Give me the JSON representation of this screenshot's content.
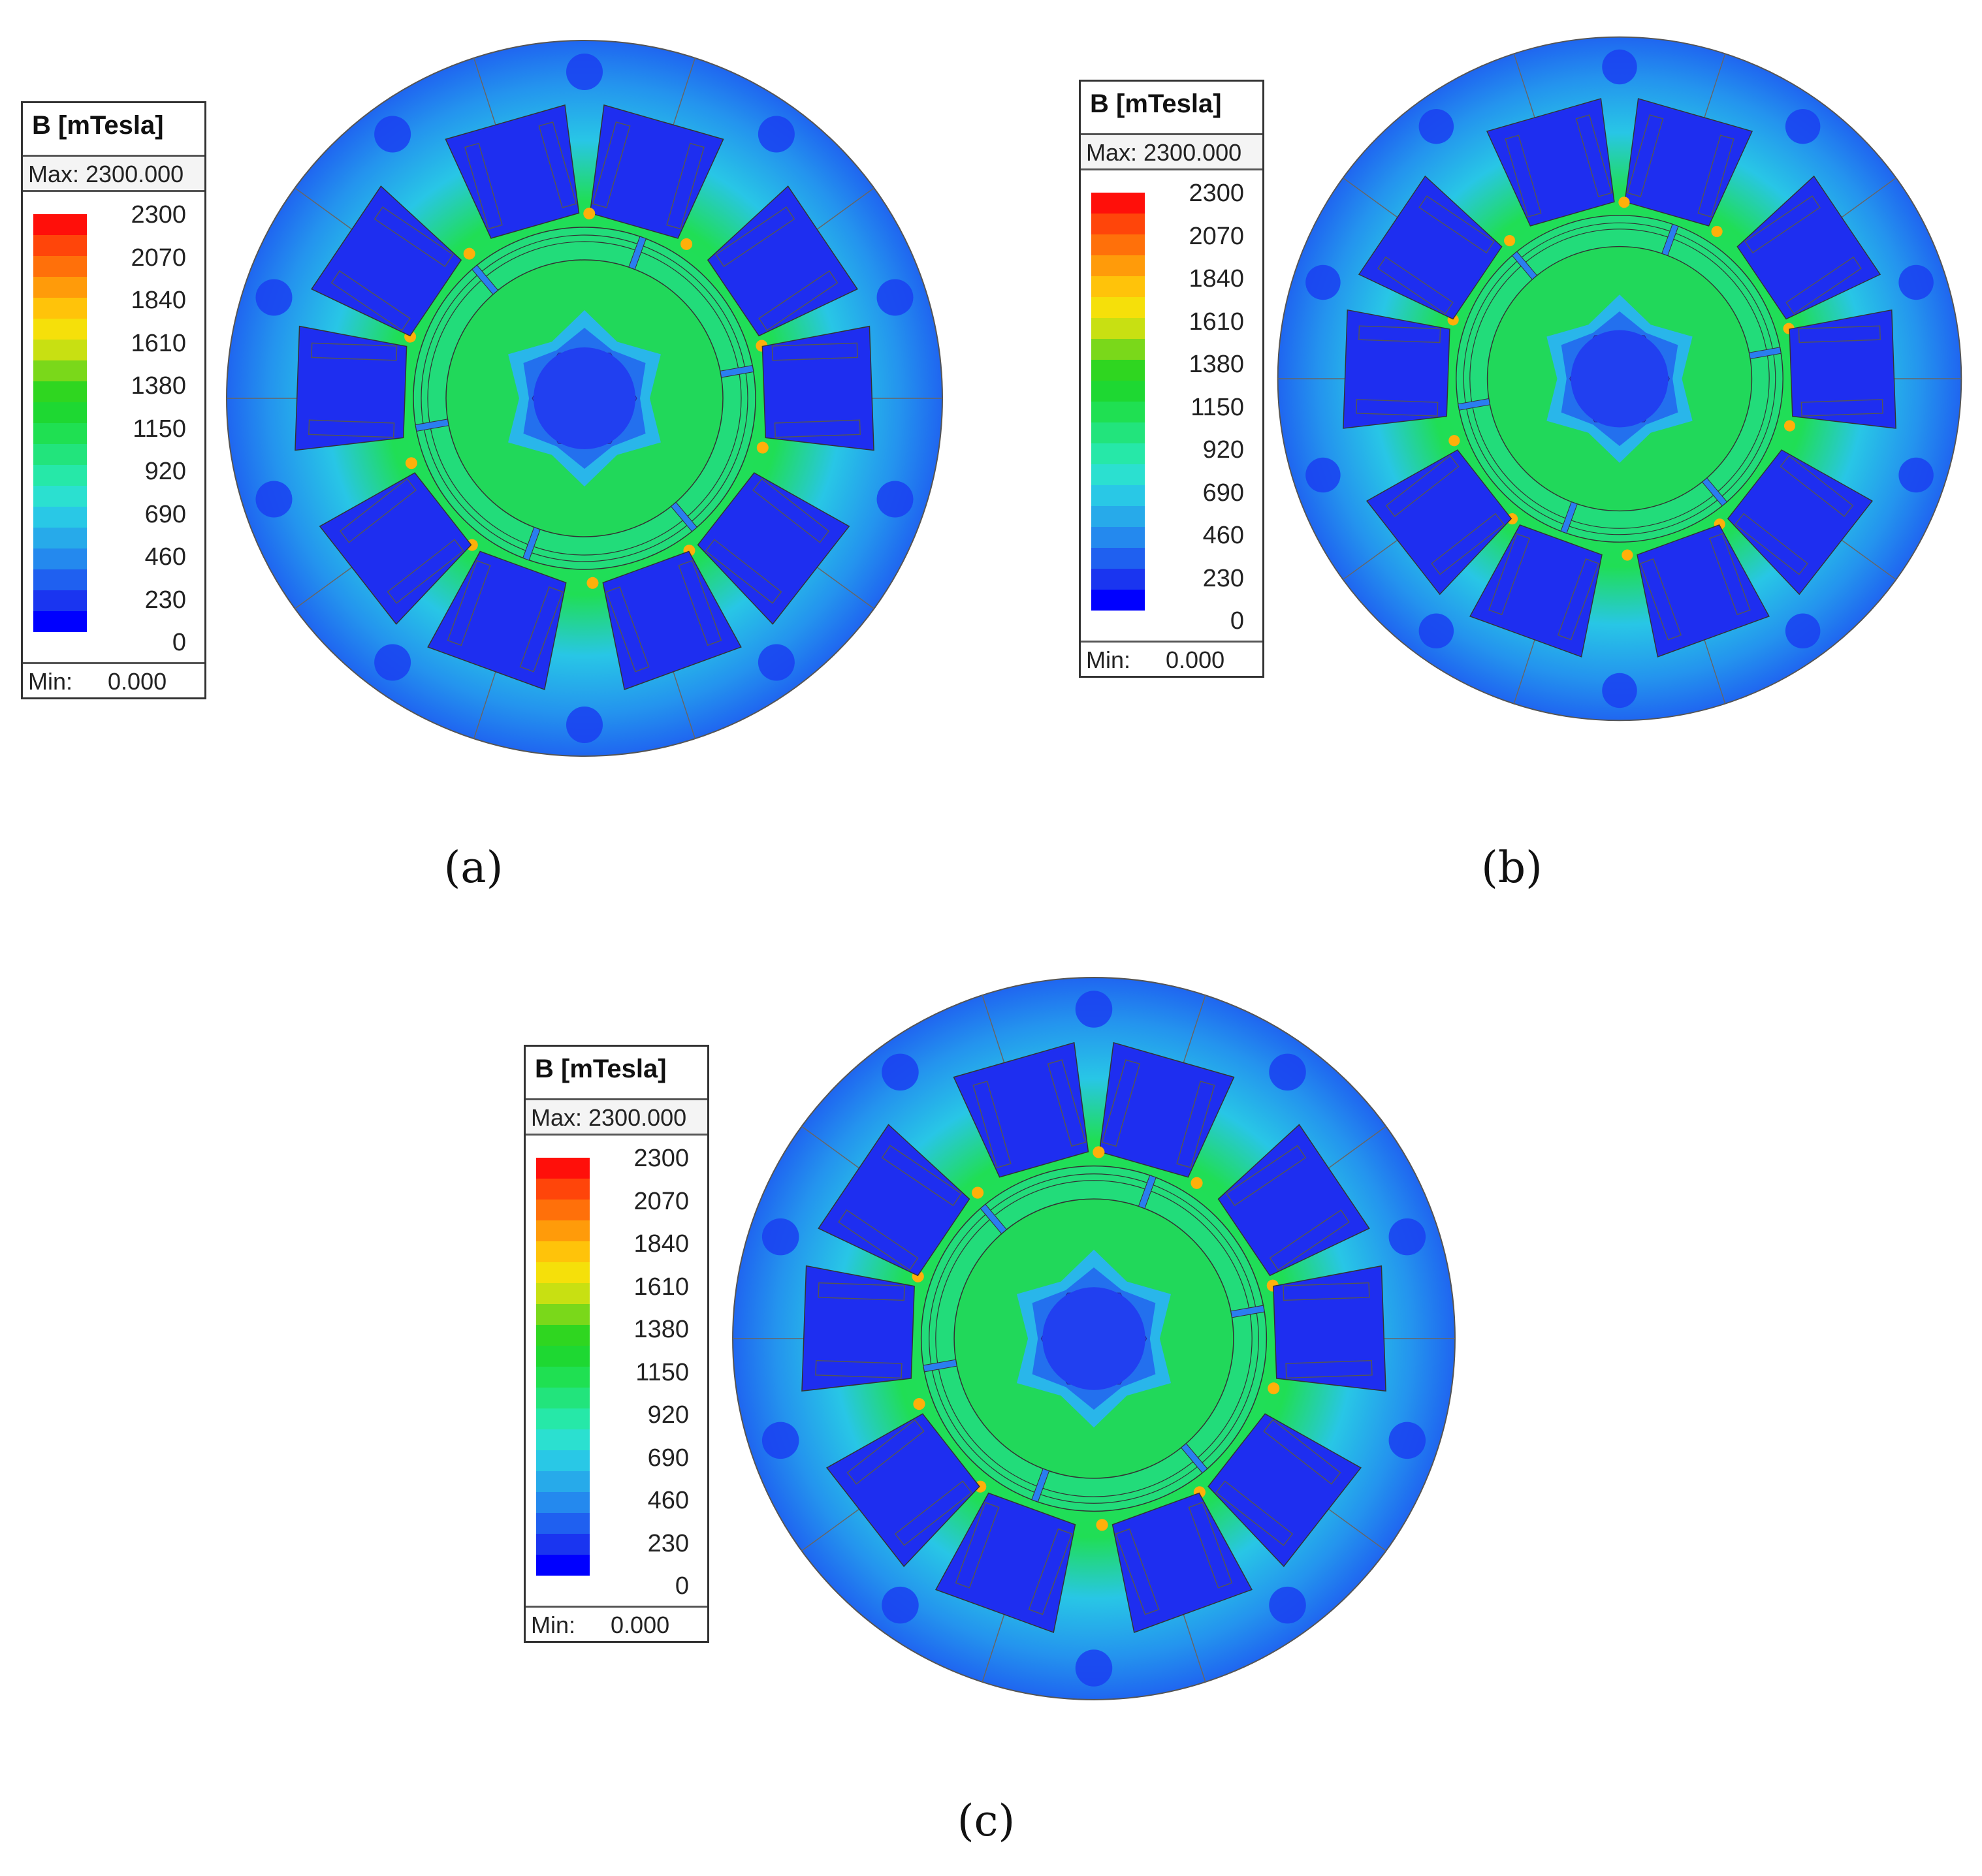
{
  "colormap": [
    "#0000ff",
    "#1a35f0",
    "#1f60f0",
    "#2489ee",
    "#27aaea",
    "#29c8e6",
    "#2be0d0",
    "#26e8a8",
    "#22e47c",
    "#1fe052",
    "#1ed832",
    "#2fd620",
    "#7ad81a",
    "#c8e012",
    "#f5e00a",
    "#ffc30a",
    "#ff9b0a",
    "#ff700a",
    "#ff450a",
    "#ff0f0a"
  ],
  "panels": [
    {
      "id": "a",
      "label": "(a)",
      "legend": {
        "title": "B [mTesla]",
        "max_text": "Max: 2300.000",
        "min_label": "Min:",
        "min_value": "0.000",
        "ticks": [
          "2300",
          "2070",
          "1840",
          "1610",
          "1380",
          "1150",
          "920",
          "690",
          "460",
          "230",
          "0"
        ]
      }
    },
    {
      "id": "b",
      "label": "(b)",
      "legend": {
        "title": "B [mTesla]",
        "max_text": "Max: 2300.000",
        "min_label": "Min:",
        "min_value": "0.000",
        "ticks": [
          "2300",
          "2070",
          "1840",
          "1610",
          "1380",
          "1150",
          "920",
          "690",
          "460",
          "230",
          "0"
        ]
      }
    },
    {
      "id": "c",
      "label": "(c)",
      "legend": {
        "title": "B [mTesla]",
        "max_text": "Max: 2300.000",
        "min_label": "Min:",
        "min_value": "0.000",
        "ticks": [
          "2300",
          "2070",
          "1840",
          "1610",
          "1380",
          "1150",
          "920",
          "690",
          "460",
          "230",
          "0"
        ]
      }
    }
  ]
}
